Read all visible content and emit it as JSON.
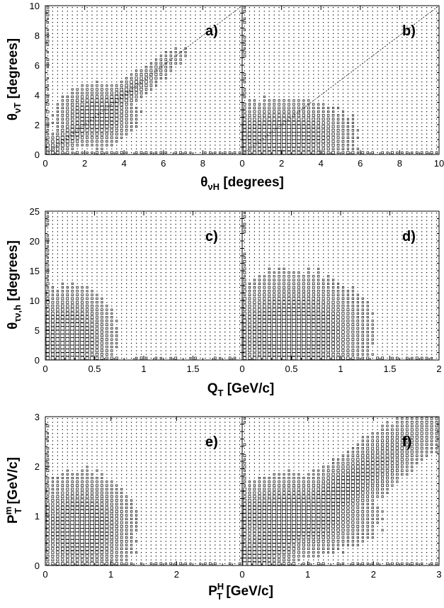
{
  "colors": {
    "ink": "#000000",
    "background": "#ffffff"
  },
  "chart_data": [
    {
      "type": "heatmap",
      "panel": "a)",
      "row": 0,
      "xlim": [
        0,
        10
      ],
      "ylim": [
        0,
        10
      ],
      "xticks": [
        "0",
        "2",
        "4",
        "6",
        "8"
      ],
      "yticks": [
        "0",
        "2",
        "4",
        "6",
        "8",
        "10"
      ],
      "ylabel": "θνT  [degrees]",
      "diagonal_line": true,
      "bins": 40,
      "density_model": {
        "kind": "diagonal",
        "cx": 2.6,
        "cy": 2.6,
        "rx": 1.4,
        "ry": 1.4,
        "base": 0.07,
        "edge_boost": 0.25
      }
    },
    {
      "type": "heatmap",
      "panel": "b)",
      "row": 0,
      "xlim": [
        0,
        10
      ],
      "ylim": [
        0,
        10
      ],
      "xticks": [
        "0",
        "2",
        "4",
        "6",
        "8",
        "10"
      ],
      "xlabel": "θνH  [degrees]",
      "diagonal_line": true,
      "bins": 40,
      "density_model": {
        "kind": "blob",
        "cx": 2.0,
        "cy": 1.3,
        "rx": 2.6,
        "ry": 1.6,
        "base": 0.07,
        "edge_boost": 0.25
      }
    },
    {
      "type": "heatmap",
      "panel": "c)",
      "row": 1,
      "xlim": [
        0,
        2
      ],
      "ylim": [
        0,
        25
      ],
      "xticks": [
        "0",
        "0.5",
        "1",
        "1.5"
      ],
      "yticks": [
        "0",
        "5",
        "10",
        "15",
        "20",
        "25"
      ],
      "ylabel": "θτν,h  [degrees]",
      "diagonal_line": false,
      "bins": 40,
      "density_model": {
        "kind": "blob",
        "cx": 0.25,
        "cy": 3.5,
        "rx": 0.32,
        "ry": 6.0,
        "base": 0.07,
        "edge_boost": 0.25
      }
    },
    {
      "type": "heatmap",
      "panel": "d)",
      "row": 1,
      "xlim": [
        0,
        2
      ],
      "ylim": [
        0,
        25
      ],
      "xticks": [
        "0",
        "0.5",
        "1",
        "1.5",
        "2"
      ],
      "xlabel": "QT  [GeV/c]",
      "diagonal_line": false,
      "bins": 40,
      "density_model": {
        "kind": "blob",
        "cx": 0.5,
        "cy": 4.5,
        "rx": 0.55,
        "ry": 7.0,
        "base": 0.07,
        "edge_boost": 0.25
      }
    },
    {
      "type": "heatmap",
      "panel": "e)",
      "row": 2,
      "xlim": [
        0,
        3
      ],
      "ylim": [
        0,
        3
      ],
      "xticks": [
        "0",
        "1",
        "2"
      ],
      "yticks": [
        "0",
        "1",
        "2",
        "3"
      ],
      "ylabel": "PTm  [GeV/c]",
      "diagonal_line": false,
      "bins": 40,
      "density_model": {
        "kind": "blob",
        "cx": 0.55,
        "cy": 0.75,
        "rx": 0.55,
        "ry": 0.75,
        "base": 0.07,
        "edge_boost": 0.25
      }
    },
    {
      "type": "heatmap",
      "panel": "f)",
      "row": 2,
      "xlim": [
        0,
        3
      ],
      "ylim": [
        0,
        3
      ],
      "xticks": [
        "0",
        "1",
        "2",
        "3"
      ],
      "xlabel": "PTH  [GeV/c]",
      "diagonal_line": false,
      "bins": 40,
      "density_model": {
        "kind": "diagonal",
        "cx": 0.75,
        "cy": 1.0,
        "rx": 0.9,
        "ry": 0.55,
        "base": 0.07,
        "edge_boost": 0.25
      }
    }
  ]
}
